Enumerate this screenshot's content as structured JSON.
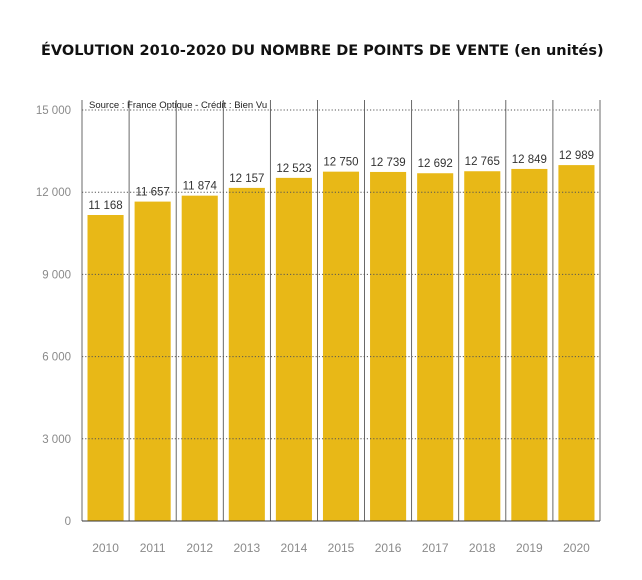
{
  "chart_data": {
    "type": "bar",
    "title": "ÉVOLUTION 2010-2020 DU NOMBRE DE POINTS DE VENTE (en unités)",
    "source": "Source : France Optique - Crédit : Bien Vu",
    "categories": [
      "2010",
      "2011",
      "2012",
      "2013",
      "2014",
      "2015",
      "2016",
      "2017",
      "2018",
      "2019",
      "2020"
    ],
    "values": [
      11168,
      11657,
      11874,
      12157,
      12523,
      12750,
      12739,
      12692,
      12765,
      12849,
      12989
    ],
    "value_labels": [
      "11 168",
      "11 657",
      "11 874",
      "12 157",
      "12 523",
      "12 750",
      "12 739",
      "12 692",
      "12 765",
      "12 849",
      "12 989"
    ],
    "yticks": [
      0,
      3000,
      6000,
      9000,
      12000,
      15000
    ],
    "ytick_labels": [
      "0",
      "3 000",
      "6 000",
      "9 000",
      "12 000",
      "15 000"
    ],
    "ylim": [
      0,
      15000
    ],
    "xlabel": "",
    "ylabel": "",
    "grid": true,
    "bar_color": "#E8B817",
    "column_border_color": "#444444",
    "grid_color": "#555555"
  }
}
